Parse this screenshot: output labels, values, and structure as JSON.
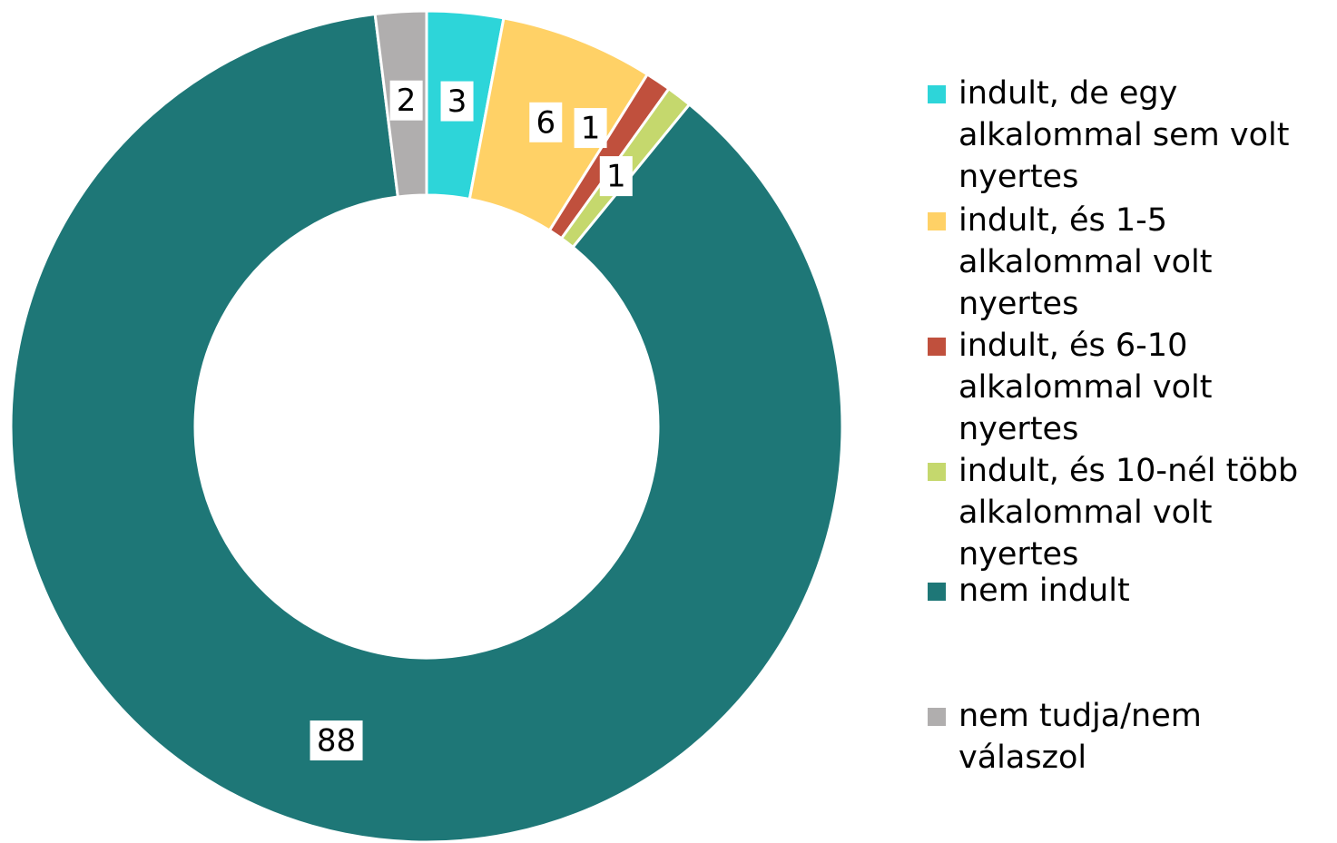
{
  "chart_data": {
    "type": "donut",
    "categories": [
      "indult, de egy alkalommal sem volt nyertes",
      "indult, és 1-5 alkalommal volt nyertes",
      "indult, és 6-10 alkalommal volt nyertes",
      "indult, és 10-nél több alkalommal volt nyertes",
      "nem indult",
      "nem tudja/nem válaszol"
    ],
    "values": [
      3,
      6,
      1,
      1,
      88,
      2
    ],
    "colors": [
      "#2dd5d9",
      "#ffd166",
      "#c0503d",
      "#c5d86d",
      "#1e7777",
      "#b0aeae"
    ],
    "legend": "right"
  }
}
